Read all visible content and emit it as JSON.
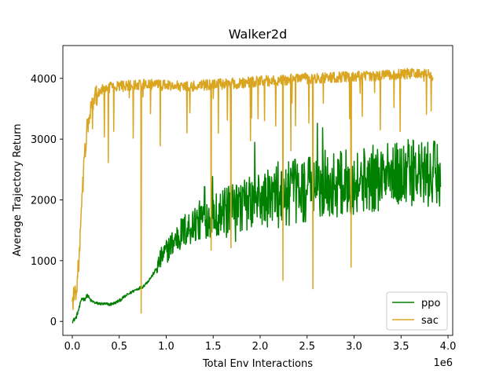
{
  "chart_data": {
    "type": "line",
    "title": "Walker2d",
    "xlabel": "Total Env Interactions",
    "ylabel": "Average Trajectory Return",
    "x_offset_label": "1e6",
    "xlim": [
      -0.1,
      4.05
    ],
    "ylim": [
      -230,
      4540
    ],
    "x_ticks": [
      0.0,
      0.5,
      1.0,
      1.5,
      2.0,
      2.5,
      3.0,
      3.5,
      4.0
    ],
    "x_tick_labels": [
      "0.0",
      "0.5",
      "1.0",
      "1.5",
      "2.0",
      "2.5",
      "3.0",
      "3.5",
      "4.0"
    ],
    "y_ticks": [
      0,
      1000,
      2000,
      3000,
      4000
    ],
    "y_tick_labels": [
      "0",
      "1000",
      "2000",
      "3000",
      "4000"
    ],
    "legend_position": "lower-right",
    "series": [
      {
        "name": "ppo",
        "color": "#008000",
        "x_end": 3.92,
        "points": [
          [
            0.0,
            0
          ],
          [
            0.04,
            60
          ],
          [
            0.08,
            250
          ],
          [
            0.1,
            380
          ],
          [
            0.13,
            360
          ],
          [
            0.16,
            430
          ],
          [
            0.2,
            340
          ],
          [
            0.25,
            300
          ],
          [
            0.3,
            290
          ],
          [
            0.4,
            280
          ],
          [
            0.45,
            300
          ],
          [
            0.5,
            340
          ],
          [
            0.55,
            400
          ],
          [
            0.6,
            450
          ],
          [
            0.65,
            500
          ],
          [
            0.7,
            540
          ],
          [
            0.75,
            570
          ],
          [
            0.8,
            650
          ],
          [
            0.85,
            750
          ],
          [
            0.9,
            880
          ],
          [
            0.95,
            1050
          ],
          [
            1.0,
            1150
          ],
          [
            1.05,
            1250
          ],
          [
            1.1,
            1350
          ],
          [
            1.2,
            1500
          ],
          [
            1.3,
            1600
          ],
          [
            1.4,
            1700
          ],
          [
            1.5,
            1750
          ],
          [
            1.6,
            1800
          ],
          [
            1.7,
            1850
          ],
          [
            1.8,
            1900
          ],
          [
            2.0,
            2000
          ],
          [
            2.2,
            2050
          ],
          [
            2.4,
            2150
          ],
          [
            2.6,
            2200
          ],
          [
            2.8,
            2250
          ],
          [
            3.0,
            2300
          ],
          [
            3.2,
            2350
          ],
          [
            3.4,
            2400
          ],
          [
            3.6,
            2450
          ],
          [
            3.8,
            2400
          ],
          [
            3.92,
            2450
          ]
        ]
      },
      {
        "name": "sac",
        "color": "#DAA520",
        "x_end": 3.84,
        "points": [
          [
            0.0,
            320
          ],
          [
            0.05,
            600
          ],
          [
            0.08,
            1200
          ],
          [
            0.1,
            1900
          ],
          [
            0.13,
            2700
          ],
          [
            0.16,
            3200
          ],
          [
            0.2,
            3500
          ],
          [
            0.25,
            3700
          ],
          [
            0.3,
            3800
          ],
          [
            0.4,
            3850
          ],
          [
            0.6,
            3880
          ],
          [
            0.8,
            3900
          ],
          [
            1.0,
            3880
          ],
          [
            1.2,
            3870
          ],
          [
            1.5,
            3900
          ],
          [
            1.8,
            3920
          ],
          [
            2.0,
            3950
          ],
          [
            2.3,
            3980
          ],
          [
            2.5,
            4000
          ],
          [
            2.8,
            4020
          ],
          [
            3.0,
            4030
          ],
          [
            3.3,
            4050
          ],
          [
            3.6,
            4080
          ],
          [
            3.84,
            4050
          ]
        ]
      }
    ]
  }
}
